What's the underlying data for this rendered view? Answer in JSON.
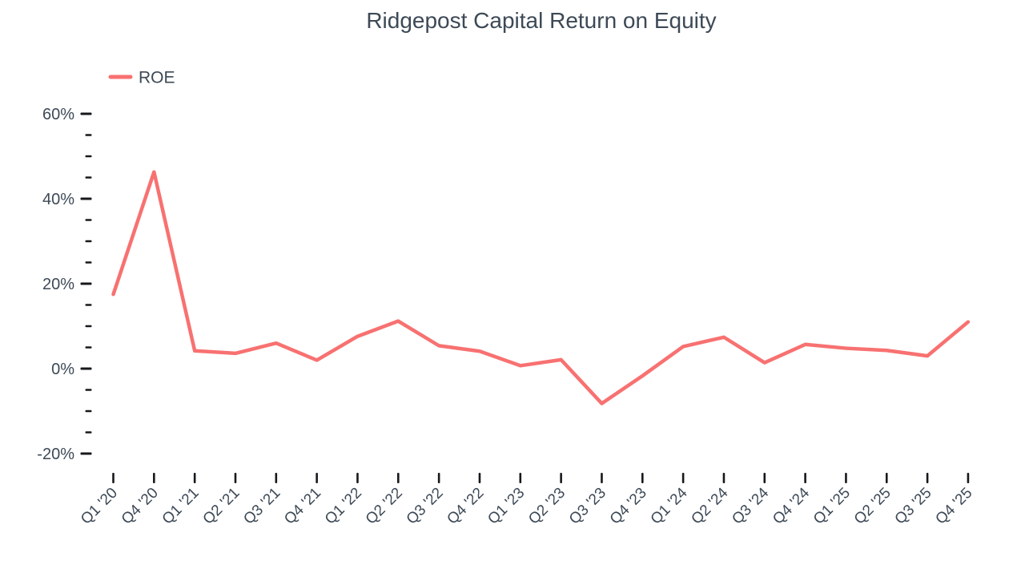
{
  "colors": {
    "accent_line": "#f87171",
    "text": "#3d4956",
    "tick": "#17181c",
    "background": "#ffffff"
  },
  "chart_data": {
    "type": "line",
    "title": "Ridgepost Capital Return on Equity",
    "legend": {
      "position": "top-left",
      "entries": [
        {
          "label": "ROE",
          "color": "#f87171"
        }
      ]
    },
    "categories": [
      "Q1 '20",
      "Q4 '20",
      "Q1 '21",
      "Q2 '21",
      "Q3 '21",
      "Q4 '21",
      "Q1 '22",
      "Q2 '22",
      "Q3 '22",
      "Q4 '22",
      "Q1 '23",
      "Q2 '23",
      "Q3 '23",
      "Q4 '23",
      "Q1 '24",
      "Q2 '24",
      "Q3 '24",
      "Q4 '24",
      "Q1 '25",
      "Q2 '25",
      "Q3 '25",
      "Q4 '25"
    ],
    "series": [
      {
        "name": "ROE",
        "color": "#f87171",
        "values": [
          17.5,
          46.3,
          4.2,
          3.6,
          6.0,
          2.0,
          7.6,
          11.2,
          5.4,
          4.1,
          0.7,
          2.1,
          -8.2,
          -1.7,
          5.2,
          7.4,
          1.4,
          5.7,
          4.8,
          4.3,
          3.0,
          11.0
        ]
      }
    ],
    "xlabel": "",
    "ylabel": "",
    "y_axis": {
      "unit": "%",
      "ylim": [
        -20,
        60
      ],
      "major_tick_values": [
        60,
        40,
        20,
        0,
        -20
      ],
      "major_tick_labels": [
        "60%",
        "40%",
        "20%",
        "0%",
        "-20%"
      ],
      "minor_tick_step": 5
    },
    "grid": false,
    "axis_lines": false
  }
}
